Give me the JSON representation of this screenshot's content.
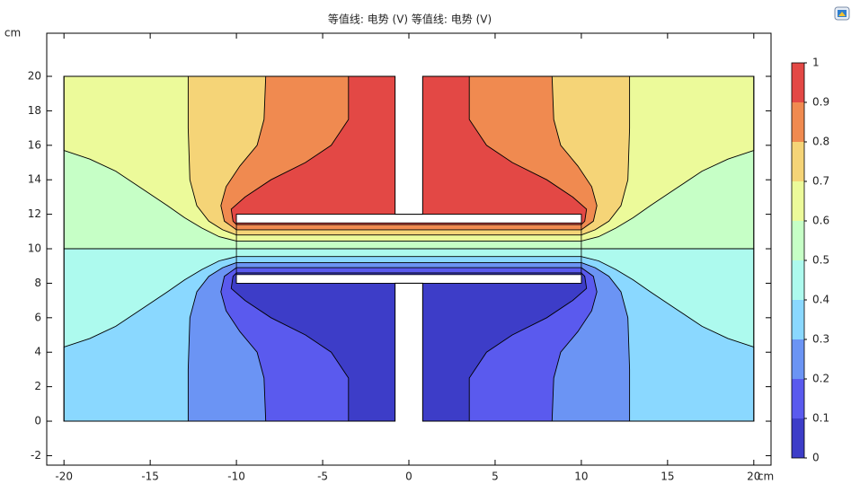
{
  "chart_data": {
    "type": "contour",
    "title": "等值线: 电势 (V)  等值线: 电势 (V)",
    "x_unit": "cm",
    "y_unit": "cm",
    "xlim": [
      -21,
      21
    ],
    "xticks": [
      -20,
      -15,
      -10,
      -5,
      0,
      5,
      10,
      15,
      20
    ],
    "ylim": [
      -2.55,
      22.5
    ],
    "yticks": [
      -2,
      0,
      2,
      4,
      6,
      8,
      10,
      12,
      14,
      16,
      18,
      20
    ],
    "levels": [
      0,
      0.1,
      0.2,
      0.3,
      0.4,
      0.5,
      0.6,
      0.7,
      0.8,
      0.9,
      1
    ],
    "colors": [
      "#3d3dc8",
      "#5a5aee",
      "#6b94f4",
      "#8ad8ff",
      "#adfaee",
      "#c6ffc6",
      "#ecfa9a",
      "#f5d477",
      "#f08a50",
      "#e34845"
    ]
  }
}
